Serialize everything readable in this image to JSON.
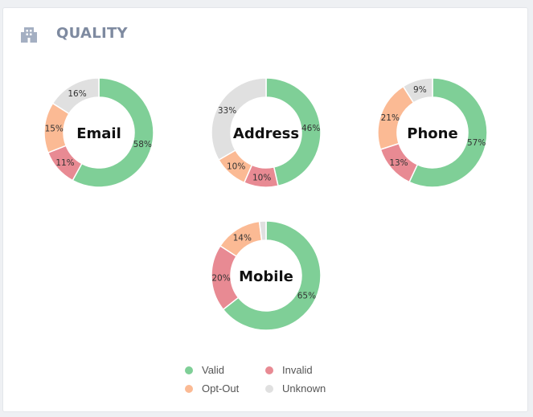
{
  "header": {
    "title": "QUALITY",
    "icon": "building-icon"
  },
  "colors": {
    "valid": "#7fcf97",
    "invalid": "#e88a93",
    "opt_out": "#fbba94",
    "unknown": "#e0e0e0"
  },
  "legend": [
    {
      "label": "Valid",
      "key": "valid"
    },
    {
      "label": "Invalid",
      "key": "invalid"
    },
    {
      "label": "Opt-Out",
      "key": "opt_out"
    },
    {
      "label": "Unknown",
      "key": "unknown"
    }
  ],
  "chart_data": [
    {
      "type": "pie",
      "title": "Email",
      "categories": [
        "Valid",
        "Invalid",
        "Opt-Out",
        "Unknown"
      ],
      "values": [
        58,
        11,
        15,
        16
      ],
      "labels": [
        "58%",
        "11%",
        "15%",
        "16%"
      ]
    },
    {
      "type": "pie",
      "title": "Address",
      "categories": [
        "Valid",
        "Invalid",
        "Opt-Out",
        "Unknown"
      ],
      "values": [
        46,
        10,
        10,
        33
      ],
      "labels": [
        "46%",
        "10%",
        "10%",
        "33%"
      ]
    },
    {
      "type": "pie",
      "title": "Phone",
      "categories": [
        "Valid",
        "Invalid",
        "Opt-Out",
        "Unknown"
      ],
      "values": [
        57,
        13,
        21,
        9
      ],
      "labels": [
        "57%",
        "13%",
        "21%",
        "9%"
      ]
    },
    {
      "type": "pie",
      "title": "Mobile",
      "categories": [
        "Valid",
        "Invalid",
        "Opt-Out",
        "Unknown"
      ],
      "values": [
        65,
        20,
        14,
        2
      ],
      "labels": [
        "65%",
        "20%",
        "14%",
        ""
      ]
    }
  ]
}
